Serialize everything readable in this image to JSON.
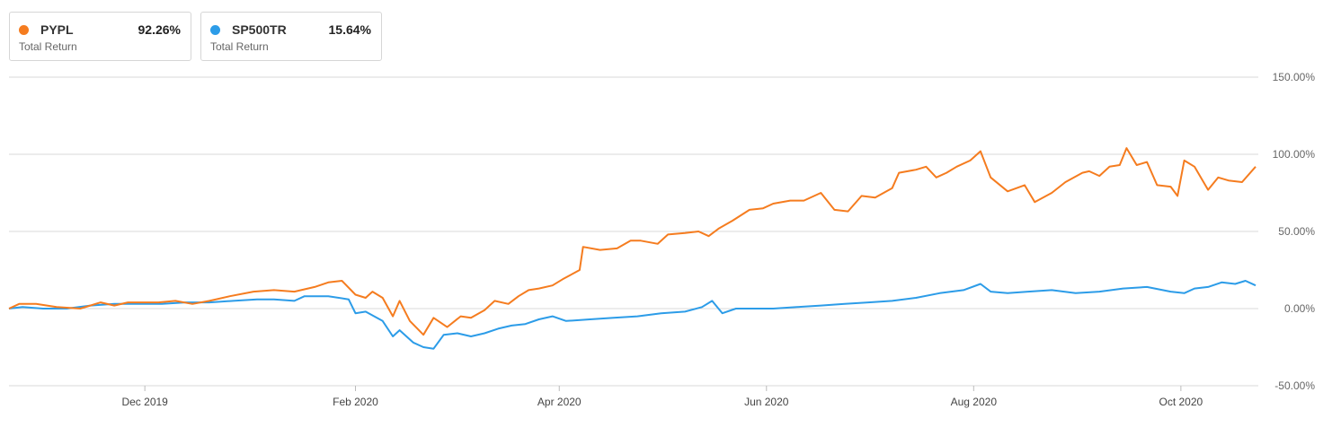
{
  "legend": [
    {
      "ticker": "PYPL",
      "value": "92.26%",
      "label": "Total Return",
      "color": "#f57c1f"
    },
    {
      "ticker": "SP500TR",
      "value": "15.64%",
      "label": "Total Return",
      "color": "#2c9ce8"
    }
  ],
  "chart_data": {
    "type": "line",
    "title": "",
    "ylabel": "",
    "xlabel": "",
    "ylim": [
      -50,
      150
    ],
    "y_ticks": [
      "150.00%",
      "100.00%",
      "50.00%",
      "0.00%",
      "-50.00%"
    ],
    "y_tick_values": [
      150,
      100,
      50,
      0,
      -50
    ],
    "x_ticks": [
      "Dec 2019",
      "Feb 2020",
      "Apr 2020",
      "Jun 2020",
      "Aug 2020",
      "Oct 2020"
    ],
    "x_tick_dates": [
      "2019-12-01",
      "2020-02-01",
      "2020-04-01",
      "2020-06-01",
      "2020-08-01",
      "2020-10-01"
    ],
    "x_range": [
      "2019-10-22",
      "2020-10-23"
    ],
    "grid": true,
    "legend_position": "top-left",
    "series": [
      {
        "name": "PYPL",
        "color": "#f57c1f",
        "points": [
          [
            "2019-10-22",
            0
          ],
          [
            "2019-10-25",
            3
          ],
          [
            "2019-10-30",
            3
          ],
          [
            "2019-11-05",
            1
          ],
          [
            "2019-11-12",
            0
          ],
          [
            "2019-11-18",
            4
          ],
          [
            "2019-11-22",
            2
          ],
          [
            "2019-11-26",
            4
          ],
          [
            "2019-12-05",
            4
          ],
          [
            "2019-12-10",
            5
          ],
          [
            "2019-12-15",
            3
          ],
          [
            "2019-12-20",
            5
          ],
          [
            "2019-12-26",
            8
          ],
          [
            "2020-01-02",
            11
          ],
          [
            "2020-01-08",
            12
          ],
          [
            "2020-01-14",
            11
          ],
          [
            "2020-01-20",
            14
          ],
          [
            "2020-01-24",
            17
          ],
          [
            "2020-01-28",
            18
          ],
          [
            "2020-02-01",
            9
          ],
          [
            "2020-02-04",
            7
          ],
          [
            "2020-02-06",
            11
          ],
          [
            "2020-02-09",
            7
          ],
          [
            "2020-02-12",
            -5
          ],
          [
            "2020-02-14",
            5
          ],
          [
            "2020-02-17",
            -8
          ],
          [
            "2020-02-21",
            -17
          ],
          [
            "2020-02-24",
            -6
          ],
          [
            "2020-02-28",
            -12
          ],
          [
            "2020-03-03",
            -5
          ],
          [
            "2020-03-06",
            -6
          ],
          [
            "2020-03-10",
            -1
          ],
          [
            "2020-03-13",
            5
          ],
          [
            "2020-03-17",
            3
          ],
          [
            "2020-03-20",
            8
          ],
          [
            "2020-03-23",
            12
          ],
          [
            "2020-03-26",
            13
          ],
          [
            "2020-03-30",
            15
          ],
          [
            "2020-04-02",
            19
          ],
          [
            "2020-04-07",
            25
          ],
          [
            "2020-04-08",
            40
          ],
          [
            "2020-04-13",
            38
          ],
          [
            "2020-04-18",
            39
          ],
          [
            "2020-04-22",
            44
          ],
          [
            "2020-04-25",
            44
          ],
          [
            "2020-04-30",
            42
          ],
          [
            "2020-05-03",
            48
          ],
          [
            "2020-05-08",
            49
          ],
          [
            "2020-05-12",
            50
          ],
          [
            "2020-05-15",
            47
          ],
          [
            "2020-05-18",
            52
          ],
          [
            "2020-05-22",
            57
          ],
          [
            "2020-05-27",
            64
          ],
          [
            "2020-05-31",
            65
          ],
          [
            "2020-06-03",
            68
          ],
          [
            "2020-06-08",
            70
          ],
          [
            "2020-06-12",
            70
          ],
          [
            "2020-06-17",
            75
          ],
          [
            "2020-06-21",
            64
          ],
          [
            "2020-06-25",
            63
          ],
          [
            "2020-06-29",
            73
          ],
          [
            "2020-07-03",
            72
          ],
          [
            "2020-07-08",
            78
          ],
          [
            "2020-07-10",
            88
          ],
          [
            "2020-07-15",
            90
          ],
          [
            "2020-07-18",
            92
          ],
          [
            "2020-07-21",
            85
          ],
          [
            "2020-07-24",
            88
          ],
          [
            "2020-07-27",
            92
          ],
          [
            "2020-07-31",
            96
          ],
          [
            "2020-08-03",
            102
          ],
          [
            "2020-08-06",
            85
          ],
          [
            "2020-08-11",
            76
          ],
          [
            "2020-08-16",
            80
          ],
          [
            "2020-08-19",
            69
          ],
          [
            "2020-08-24",
            75
          ],
          [
            "2020-08-28",
            82
          ],
          [
            "2020-09-02",
            88
          ],
          [
            "2020-09-04",
            89
          ],
          [
            "2020-09-07",
            86
          ],
          [
            "2020-09-10",
            92
          ],
          [
            "2020-09-13",
            93
          ],
          [
            "2020-09-15",
            104
          ],
          [
            "2020-09-18",
            93
          ],
          [
            "2020-09-21",
            95
          ],
          [
            "2020-09-24",
            80
          ],
          [
            "2020-09-28",
            79
          ],
          [
            "2020-09-30",
            73
          ],
          [
            "2020-10-02",
            96
          ],
          [
            "2020-10-05",
            92
          ],
          [
            "2020-10-09",
            77
          ],
          [
            "2020-10-12",
            85
          ],
          [
            "2020-10-15",
            83
          ],
          [
            "2020-10-19",
            82
          ],
          [
            "2020-10-23",
            92
          ]
        ]
      },
      {
        "name": "SP500TR",
        "color": "#2c9ce8",
        "points": [
          [
            "2019-10-22",
            0
          ],
          [
            "2019-10-26",
            1
          ],
          [
            "2019-11-01",
            0
          ],
          [
            "2019-11-08",
            0
          ],
          [
            "2019-11-15",
            2
          ],
          [
            "2019-11-22",
            3
          ],
          [
            "2019-11-29",
            3
          ],
          [
            "2019-12-06",
            3
          ],
          [
            "2019-12-13",
            4
          ],
          [
            "2019-12-20",
            4
          ],
          [
            "2019-12-27",
            5
          ],
          [
            "2020-01-03",
            6
          ],
          [
            "2020-01-08",
            6
          ],
          [
            "2020-01-14",
            5
          ],
          [
            "2020-01-17",
            8
          ],
          [
            "2020-01-24",
            8
          ],
          [
            "2020-01-30",
            6
          ],
          [
            "2020-02-01",
            -3
          ],
          [
            "2020-02-04",
            -2
          ],
          [
            "2020-02-09",
            -8
          ],
          [
            "2020-02-12",
            -18
          ],
          [
            "2020-02-14",
            -14
          ],
          [
            "2020-02-18",
            -22
          ],
          [
            "2020-02-21",
            -25
          ],
          [
            "2020-02-24",
            -26
          ],
          [
            "2020-02-27",
            -17
          ],
          [
            "2020-03-02",
            -16
          ],
          [
            "2020-03-06",
            -18
          ],
          [
            "2020-03-10",
            -16
          ],
          [
            "2020-03-14",
            -13
          ],
          [
            "2020-03-18",
            -11
          ],
          [
            "2020-03-22",
            -10
          ],
          [
            "2020-03-26",
            -7
          ],
          [
            "2020-03-30",
            -5
          ],
          [
            "2020-04-03",
            -8
          ],
          [
            "2020-04-10",
            -7
          ],
          [
            "2020-04-17",
            -6
          ],
          [
            "2020-04-24",
            -5
          ],
          [
            "2020-05-01",
            -3
          ],
          [
            "2020-05-08",
            -2
          ],
          [
            "2020-05-13",
            1
          ],
          [
            "2020-05-16",
            5
          ],
          [
            "2020-05-19",
            -3
          ],
          [
            "2020-05-23",
            0
          ],
          [
            "2020-05-30",
            0
          ],
          [
            "2020-06-03",
            0
          ],
          [
            "2020-06-10",
            1
          ],
          [
            "2020-06-17",
            2
          ],
          [
            "2020-06-24",
            3
          ],
          [
            "2020-07-01",
            4
          ],
          [
            "2020-07-08",
            5
          ],
          [
            "2020-07-15",
            7
          ],
          [
            "2020-07-22",
            10
          ],
          [
            "2020-07-29",
            12
          ],
          [
            "2020-08-03",
            16
          ],
          [
            "2020-08-06",
            11
          ],
          [
            "2020-08-11",
            10
          ],
          [
            "2020-08-17",
            11
          ],
          [
            "2020-08-24",
            12
          ],
          [
            "2020-08-31",
            10
          ],
          [
            "2020-09-07",
            11
          ],
          [
            "2020-09-14",
            13
          ],
          [
            "2020-09-21",
            14
          ],
          [
            "2020-09-28",
            11
          ],
          [
            "2020-10-02",
            10
          ],
          [
            "2020-10-05",
            13
          ],
          [
            "2020-10-09",
            14
          ],
          [
            "2020-10-13",
            17
          ],
          [
            "2020-10-17",
            16
          ],
          [
            "2020-10-20",
            18
          ],
          [
            "2020-10-23",
            15
          ]
        ]
      }
    ]
  }
}
